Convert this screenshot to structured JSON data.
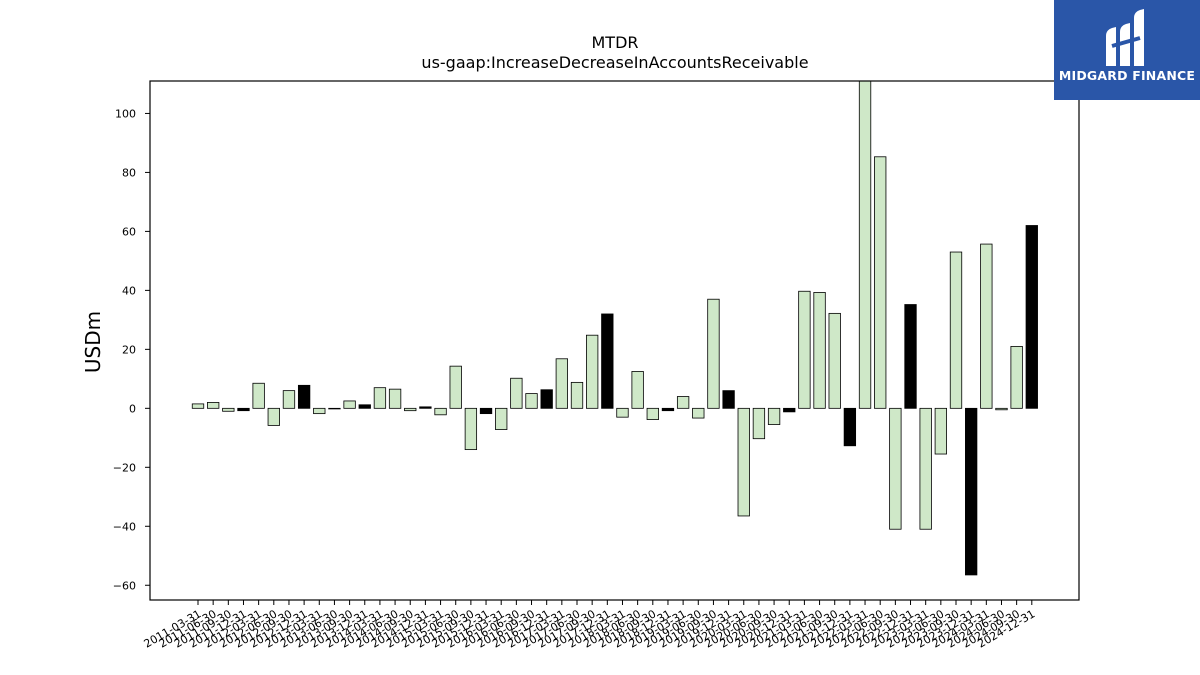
{
  "brand": {
    "name": "MIDGARD FINANCE",
    "bg_color": "#2a56a8",
    "mark_icon": "midgard-mark-icon"
  },
  "chart_data": {
    "type": "bar",
    "title": "MTDR",
    "subtitle": "us-gaap:IncreaseDecreaseInAccountsReceivable",
    "xlabel": "",
    "ylabel": "USDm",
    "ylim": [
      -65,
      111
    ],
    "yticks": [
      -60,
      -40,
      -20,
      0,
      20,
      40,
      60,
      80,
      100
    ],
    "grid": false,
    "colors": {
      "quarterly": "#cfe8c8",
      "annual_q4": "#000000",
      "edge": "#000000"
    },
    "categories": [
      "2011-03-31",
      "2011-06-30",
      "2011-09-30",
      "2011-12-31",
      "2012-03-31",
      "2012-06-30",
      "2012-09-30",
      "2012-12-31",
      "2013-03-31",
      "2013-06-30",
      "2013-09-30",
      "2013-12-31",
      "2014-03-31",
      "2014-06-30",
      "2014-09-30",
      "2014-12-31",
      "2015-03-31",
      "2015-06-30",
      "2015-09-30",
      "2015-12-31",
      "2016-03-31",
      "2016-06-30",
      "2016-09-30",
      "2016-12-31",
      "2017-03-31",
      "2017-06-30",
      "2017-09-30",
      "2017-12-31",
      "2018-03-31",
      "2018-06-30",
      "2018-09-30",
      "2018-12-31",
      "2019-03-31",
      "2019-06-30",
      "2019-09-30",
      "2019-12-31",
      "2020-03-31",
      "2020-06-30",
      "2020-09-30",
      "2020-12-31",
      "2021-03-31",
      "2021-06-30",
      "2021-09-30",
      "2021-12-31",
      "2022-03-31",
      "2022-06-30",
      "2022-09-30",
      "2022-12-31",
      "2023-03-31",
      "2023-06-30",
      "2023-09-30",
      "2023-12-31",
      "2024-03-31",
      "2024-06-30",
      "2024-09-30",
      "2024-12-31"
    ],
    "values": [
      1.5,
      2.0,
      -1.0,
      -0.8,
      8.5,
      -5.8,
      6.0,
      7.8,
      -1.8,
      0.0,
      2.5,
      1.2,
      7.0,
      6.5,
      -0.8,
      0.5,
      -2.2,
      14.3,
      -14.0,
      -1.8,
      -7.2,
      10.2,
      5.0,
      6.3,
      16.8,
      8.8,
      24.8,
      32.0,
      -3.0,
      12.5,
      -3.8,
      -0.8,
      4.0,
      -3.3,
      37.0,
      6.0,
      -36.5,
      -10.3,
      -5.5,
      -1.2,
      39.7,
      39.3,
      32.2,
      -12.7,
      111.0,
      85.3,
      -41.0,
      35.2,
      -41.0,
      -15.5,
      53.0,
      -56.5,
      55.7,
      -0.5,
      21.0,
      62.0
    ],
    "annual": [
      false,
      false,
      false,
      true,
      false,
      false,
      false,
      true,
      false,
      false,
      false,
      true,
      false,
      false,
      false,
      true,
      false,
      false,
      false,
      true,
      false,
      false,
      false,
      true,
      false,
      false,
      false,
      true,
      false,
      false,
      false,
      true,
      false,
      false,
      false,
      true,
      false,
      false,
      false,
      true,
      false,
      false,
      false,
      true,
      false,
      false,
      false,
      true,
      false,
      false,
      false,
      true,
      false,
      false,
      false,
      true
    ]
  }
}
